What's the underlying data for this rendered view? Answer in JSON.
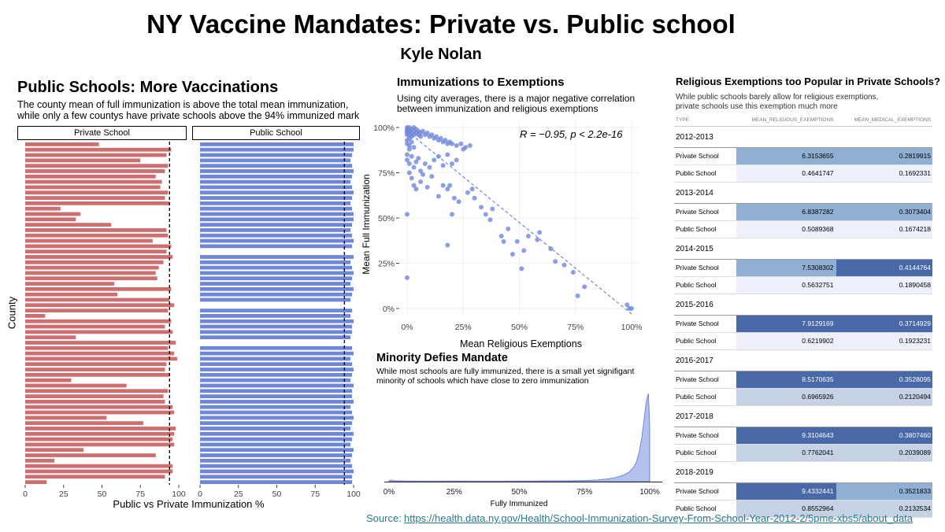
{
  "header": {
    "title": "NY Vaccine Mandates: Private vs. Public school",
    "author": "Kyle Nolan"
  },
  "source": {
    "label": "Source:",
    "url": "https://health.data.ny.gov/Health/School-Immunization-Survey-From-School-Year-2012-2/5pme-xbs5/about_data"
  },
  "chart_data": [
    {
      "type": "bar",
      "orientation": "horizontal",
      "title": "Public Schools: More Vaccinations",
      "subtitle_line1": "The county mean of full immunization is above the total mean immunization,",
      "subtitle_line2": "while only a few countys have private schools above the 94% immunized mark",
      "xlabel": "Public vs Private Immunization %",
      "ylabel": "County",
      "xlim": [
        0,
        100
      ],
      "xticks": [
        "0",
        "25",
        "50",
        "75",
        "100"
      ],
      "reference_line": 94,
      "facets": [
        {
          "name": "Private School",
          "color": "#cd6f6f",
          "values": [
            48,
            95,
            92,
            75,
            93,
            91,
            85,
            89,
            88,
            93,
            91,
            94,
            23,
            36,
            33,
            56,
            92,
            93,
            83,
            95,
            92,
            96,
            90,
            87,
            85,
            86,
            58,
            95,
            60,
            94,
            97,
            93,
            13,
            95,
            91,
            96,
            33,
            98,
            93,
            97,
            99,
            92,
            91,
            94,
            30,
            66,
            93,
            90,
            91,
            96,
            97,
            53,
            77,
            98,
            97,
            96,
            97,
            38,
            85,
            19,
            96,
            96,
            91,
            14
          ]
        },
        {
          "name": "Public School",
          "color": "#6f87d8",
          "values": [
            100,
            100,
            99,
            98,
            99,
            100,
            99,
            98,
            99,
            100,
            99,
            98,
            99,
            100,
            100,
            99,
            98,
            99,
            100,
            99,
            null,
            100,
            98,
            99,
            100,
            99,
            98,
            100,
            99,
            98,
            null,
            99,
            98,
            100,
            99,
            99,
            98,
            null,
            99,
            100,
            98,
            99,
            100,
            99,
            98,
            100,
            99,
            99,
            100,
            98,
            99,
            100,
            99,
            98,
            100,
            99,
            98,
            100,
            99,
            98,
            99,
            100,
            99,
            99
          ]
        }
      ]
    },
    {
      "type": "scatter",
      "title": "Immunizations to Exemptions",
      "subtitle_line1": "Using city averages, there is a major negative correlation",
      "subtitle_line2": "between immunization and religious exemptions",
      "annotation": "R = −0.95, p < 2.2e-16",
      "xlabel": "Mean Religious Exemptions",
      "ylabel": "Mean Full Immunization",
      "xlim": [
        0,
        100
      ],
      "ylim": [
        0,
        100
      ],
      "xticks": [
        "0%",
        "25%",
        "50%",
        "75%",
        "100%"
      ],
      "yticks": [
        "0%",
        "25%",
        "50%",
        "75%",
        "100%"
      ],
      "trend_line": {
        "style": "dashed",
        "from": [
          0,
          98
        ],
        "to": [
          100,
          -3
        ]
      },
      "color": "#6f87d8",
      "points": [
        [
          0,
          100
        ],
        [
          0,
          99
        ],
        [
          0,
          98
        ],
        [
          0,
          97
        ],
        [
          0,
          96
        ],
        [
          1,
          100
        ],
        [
          1,
          98
        ],
        [
          1,
          96
        ],
        [
          1,
          94
        ],
        [
          2,
          99
        ],
        [
          2,
          97
        ],
        [
          2,
          95
        ],
        [
          3,
          100
        ],
        [
          3,
          98
        ],
        [
          3,
          96
        ],
        [
          4,
          99
        ],
        [
          4,
          97
        ],
        [
          5,
          98
        ],
        [
          5,
          96
        ],
        [
          6,
          97
        ],
        [
          6,
          95
        ],
        [
          7,
          98
        ],
        [
          8,
          96
        ],
        [
          9,
          97
        ],
        [
          10,
          95
        ],
        [
          11,
          96
        ],
        [
          12,
          94
        ],
        [
          13,
          95
        ],
        [
          14,
          93
        ],
        [
          15,
          94
        ],
        [
          16,
          92
        ],
        [
          17,
          93
        ],
        [
          18,
          91
        ],
        [
          19,
          92
        ],
        [
          20,
          91
        ],
        [
          22,
          90
        ],
        [
          24,
          91
        ],
        [
          26,
          89
        ],
        [
          28,
          90
        ],
        [
          0,
          93
        ],
        [
          0,
          91
        ],
        [
          1,
          90
        ],
        [
          1,
          88
        ],
        [
          2,
          92
        ],
        [
          3,
          89
        ],
        [
          0,
          85
        ],
        [
          0,
          82
        ],
        [
          1,
          80
        ],
        [
          2,
          84
        ],
        [
          3,
          78
        ],
        [
          4,
          81
        ],
        [
          5,
          83
        ],
        [
          6,
          76
        ],
        [
          7,
          74
        ],
        [
          8,
          80
        ],
        [
          10,
          78
        ],
        [
          12,
          82
        ],
        [
          14,
          84
        ],
        [
          16,
          79
        ],
        [
          18,
          85
        ],
        [
          20,
          80
        ],
        [
          22,
          82
        ],
        [
          25,
          88
        ],
        [
          1,
          75
        ],
        [
          2,
          72
        ],
        [
          3,
          68
        ],
        [
          4,
          66
        ],
        [
          6,
          70
        ],
        [
          9,
          67
        ],
        [
          11,
          73
        ],
        [
          14,
          62
        ],
        [
          16,
          68
        ],
        [
          18,
          66
        ],
        [
          19,
          68
        ],
        [
          21,
          61
        ],
        [
          23,
          59
        ],
        [
          27,
          64
        ],
        [
          29,
          66
        ],
        [
          30,
          61
        ],
        [
          33,
          56
        ],
        [
          35,
          52
        ],
        [
          37,
          49
        ],
        [
          38,
          55
        ],
        [
          42,
          40
        ],
        [
          43,
          37
        ],
        [
          45,
          44
        ],
        [
          47,
          30
        ],
        [
          49,
          37
        ],
        [
          51,
          22
        ],
        [
          52,
          32
        ],
        [
          54,
          40
        ],
        [
          58,
          38
        ],
        [
          59,
          42
        ],
        [
          64,
          33
        ],
        [
          66,
          26
        ],
        [
          70,
          24
        ],
        [
          74,
          20
        ],
        [
          76,
          7
        ],
        [
          79,
          12
        ],
        [
          98,
          2
        ],
        [
          99,
          0
        ],
        [
          100,
          0
        ],
        [
          0,
          52
        ],
        [
          0,
          17
        ],
        [
          18,
          35
        ],
        [
          20,
          52
        ]
      ]
    },
    {
      "type": "area",
      "title": "Minority Defies Mandate",
      "subtitle_line1": "While most schools are fully immunized, there is a small yet signifigant",
      "subtitle_line2": "minority of schools which have close to zero immunization",
      "xlabel": "Fully Immunized",
      "xlim": [
        0,
        100
      ],
      "xticks": [
        "0%",
        "25%",
        "50%",
        "75%",
        "100%"
      ],
      "color": "#9aaee6",
      "x": [
        0,
        1,
        2,
        4,
        8,
        15,
        25,
        35,
        50,
        60,
        70,
        75,
        80,
        84,
        87,
        90,
        92,
        94,
        95,
        96,
        97,
        98,
        98.5,
        99,
        99.5,
        100
      ],
      "density": [
        0.9,
        1.6,
        0.8,
        0.7,
        0.6,
        0.5,
        0.6,
        0.5,
        0.6,
        0.7,
        0.9,
        1.2,
        1.8,
        3,
        4.5,
        7,
        10,
        16,
        22,
        32,
        48,
        70,
        82,
        90,
        95,
        60
      ]
    },
    {
      "type": "table",
      "title": "Religious Exemptions too Popular in Private Schools?",
      "subtitle_line1": "While public schools barely allow for religious exemptions,",
      "subtitle_line2": "private schools use this exemption much more",
      "columns": [
        "TYPE",
        "MEAN_RELIGIOUS_EXEMPTIONS",
        "MEAN_MEDICAL_EXEMPTIONS"
      ],
      "groups": [
        {
          "year": "2012-2013",
          "rows": [
            {
              "type": "Private School",
              "religious": "6.3153655",
              "medical": "0.2819915",
              "rel_color": "#8fafd3",
              "med_color": "#8fafd3",
              "rel_dark": false,
              "med_dark": false
            },
            {
              "type": "Public School",
              "religious": "0.4641747",
              "medical": "0.1692331",
              "rel_color": "#eef1fb",
              "med_color": "#eef1fb",
              "rel_dark": false,
              "med_dark": false
            }
          ]
        },
        {
          "year": "2013-2014",
          "rows": [
            {
              "type": "Private School",
              "religious": "6.8387282",
              "medical": "0.3073404",
              "rel_color": "#8fafd3",
              "med_color": "#8fafd3",
              "rel_dark": false,
              "med_dark": false
            },
            {
              "type": "Public School",
              "religious": "0.5089368",
              "medical": "0.1674218",
              "rel_color": "#eef1fb",
              "med_color": "#eef1fb",
              "rel_dark": false,
              "med_dark": false
            }
          ]
        },
        {
          "year": "2014-2015",
          "rows": [
            {
              "type": "Private School",
              "religious": "7.5308302",
              "medical": "0.4144764",
              "rel_color": "#8fafd3",
              "med_color": "#4a69a8",
              "rel_dark": false,
              "med_dark": true
            },
            {
              "type": "Public School",
              "religious": "0.5632751",
              "medical": "0.1890458",
              "rel_color": "#eef1fb",
              "med_color": "#eef1fb",
              "rel_dark": false,
              "med_dark": false
            }
          ]
        },
        {
          "year": "2015-2016",
          "rows": [
            {
              "type": "Private School",
              "religious": "7.9129169",
              "medical": "0.3714929",
              "rel_color": "#4a69a8",
              "med_color": "#4a69a8",
              "rel_dark": true,
              "med_dark": true
            },
            {
              "type": "Public School",
              "religious": "0.6219902",
              "medical": "0.1923231",
              "rel_color": "#eef1fb",
              "med_color": "#eef1fb",
              "rel_dark": false,
              "med_dark": false
            }
          ]
        },
        {
          "year": "2016-2017",
          "rows": [
            {
              "type": "Private School",
              "religious": "8.5170635",
              "medical": "0.3528095",
              "rel_color": "#4a69a8",
              "med_color": "#4a69a8",
              "rel_dark": true,
              "med_dark": true
            },
            {
              "type": "Public School",
              "religious": "0.6965926",
              "medical": "0.2120494",
              "rel_color": "#c5d2e6",
              "med_color": "#c5d2e6",
              "rel_dark": false,
              "med_dark": false
            }
          ]
        },
        {
          "year": "2017-2018",
          "rows": [
            {
              "type": "Private School",
              "religious": "9.3104643",
              "medical": "0.3807460",
              "rel_color": "#4a69a8",
              "med_color": "#4a69a8",
              "rel_dark": true,
              "med_dark": true
            },
            {
              "type": "Public School",
              "religious": "0.7762041",
              "medical": "0.2039089",
              "rel_color": "#c5d2e6",
              "med_color": "#c5d2e6",
              "rel_dark": false,
              "med_dark": false
            }
          ]
        },
        {
          "year": "2018-2019",
          "rows": [
            {
              "type": "Private School",
              "religious": "9.4332441",
              "medical": "0.3521833",
              "rel_color": "#4a69a8",
              "med_color": "#8fafd3",
              "rel_dark": true,
              "med_dark": false
            },
            {
              "type": "Public School",
              "religious": "0.8552964",
              "medical": "0.2132534",
              "rel_color": "#c5d2e6",
              "med_color": "#c5d2e6",
              "rel_dark": false,
              "med_dark": false
            }
          ]
        }
      ]
    }
  ]
}
